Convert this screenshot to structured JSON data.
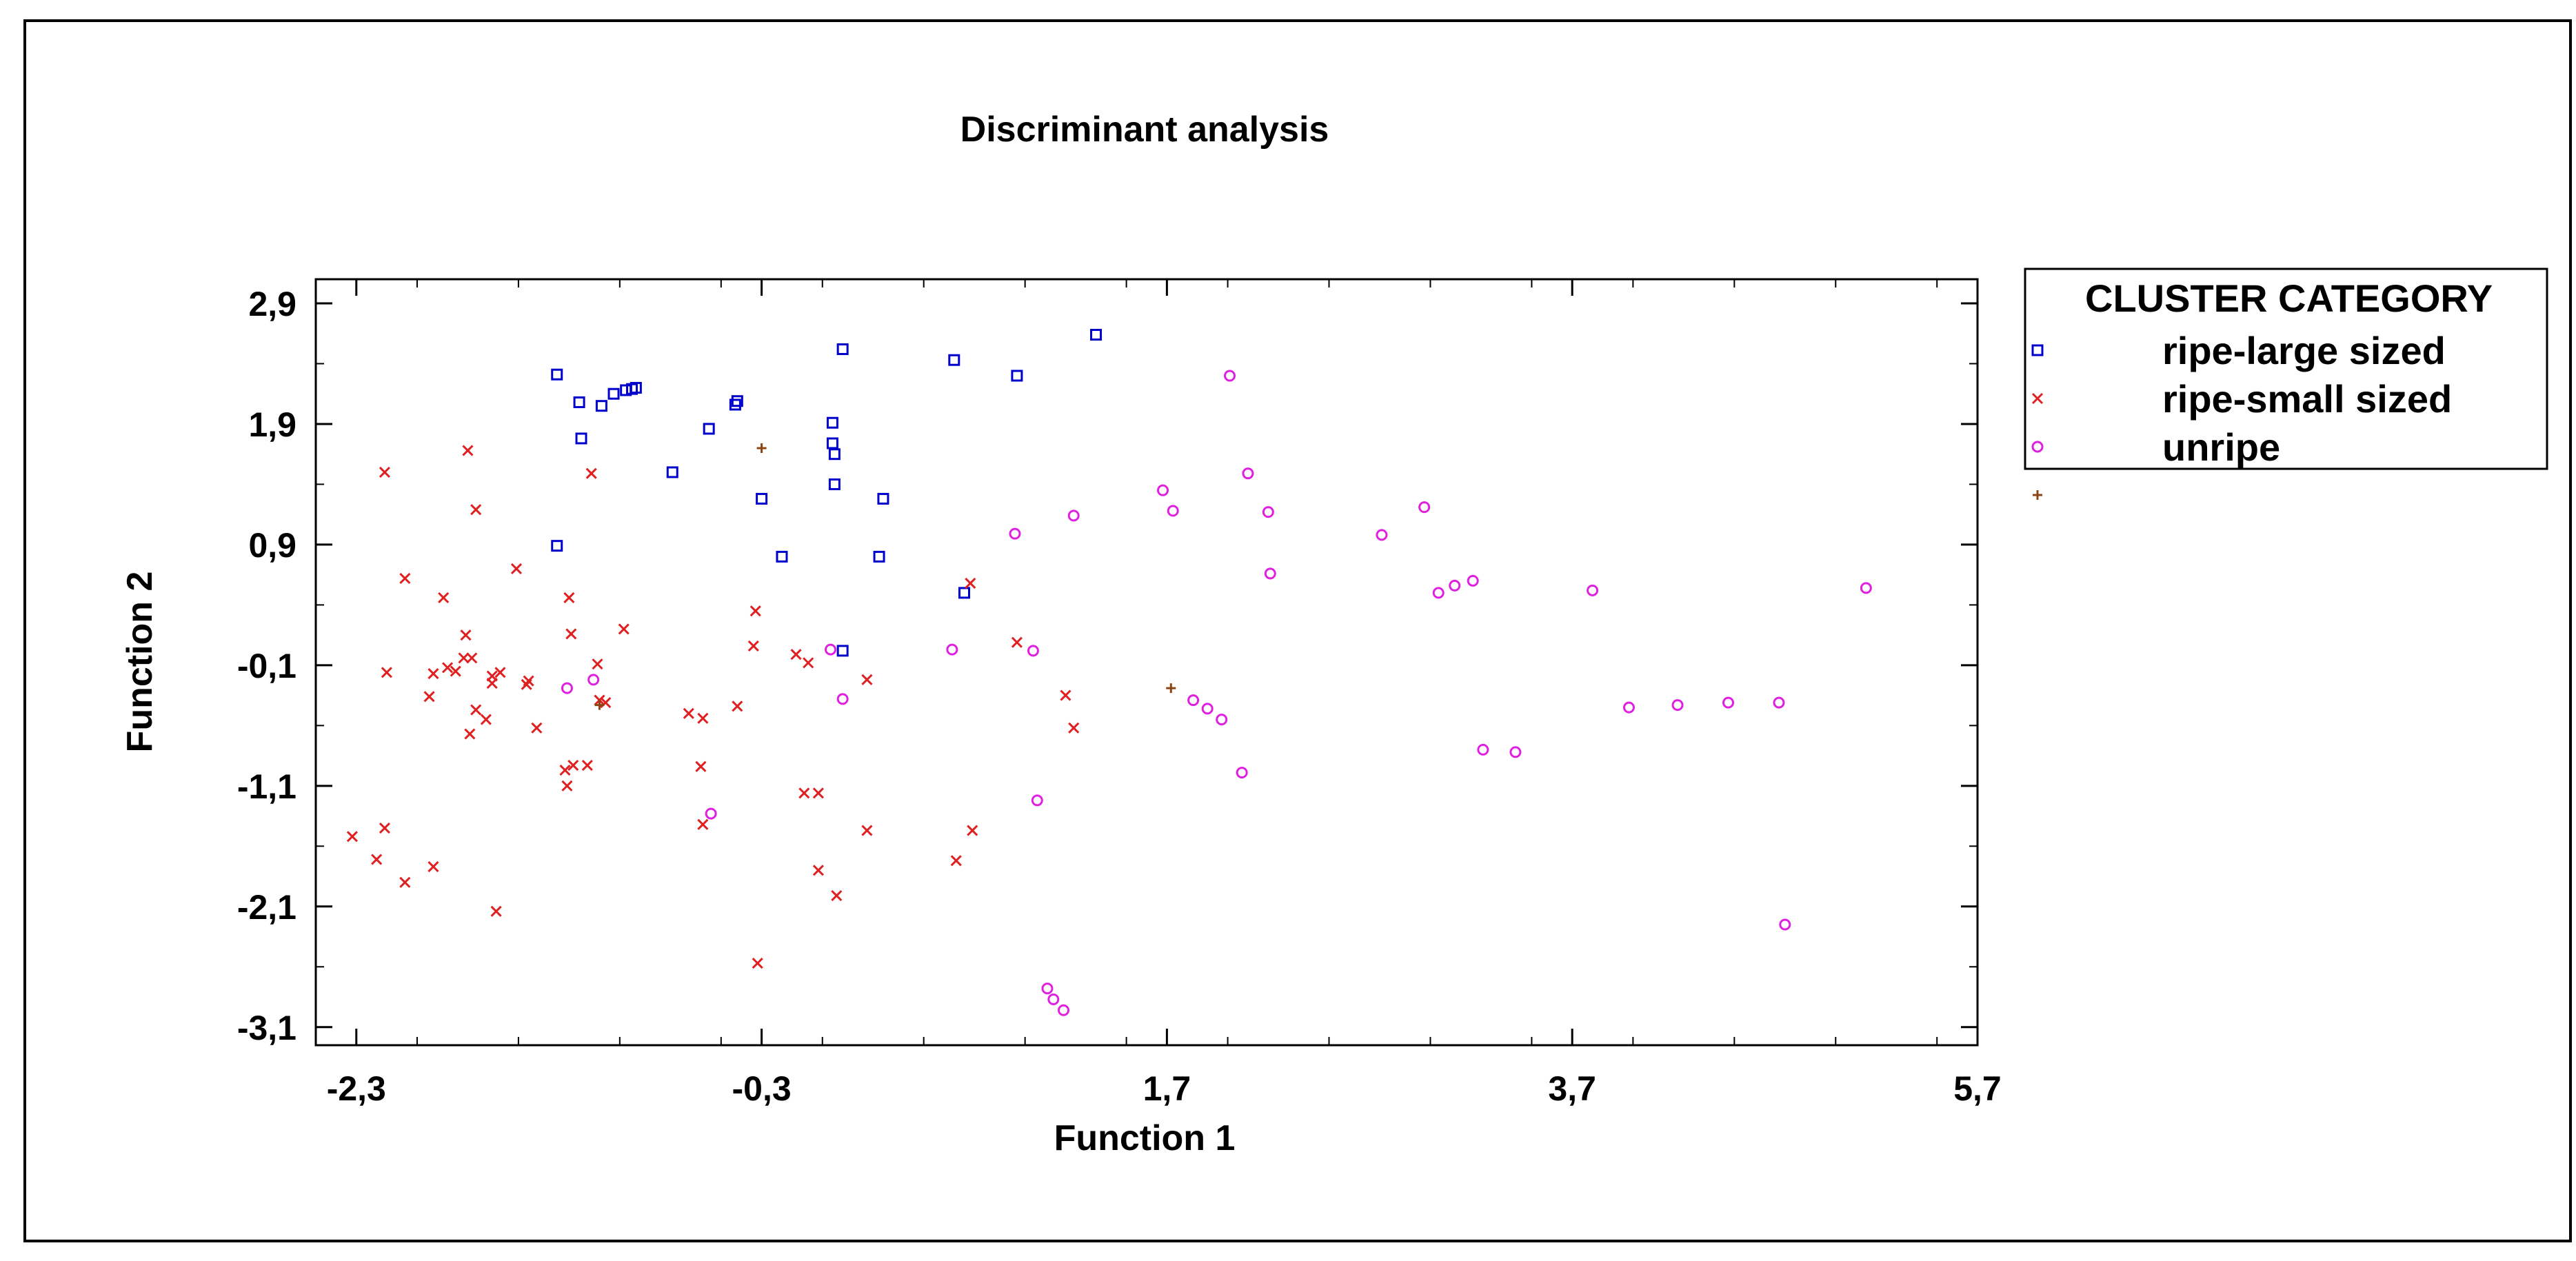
{
  "chart_data": {
    "type": "scatter",
    "title": "Discriminant analysis",
    "xlabel": "Function 1",
    "ylabel": "Function 2",
    "xlim": [
      -2.5,
      5.7
    ],
    "ylim": [
      -3.25,
      3.1
    ],
    "x_ticks": [
      "-2,3",
      "-0,3",
      "1,7",
      "3,7",
      "5,7"
    ],
    "x_tick_values": [
      -2.3,
      -0.3,
      1.7,
      3.7,
      5.7
    ],
    "y_ticks": [
      "2,9",
      "1,9",
      "0,9",
      "-0,1",
      "-1,1",
      "-2,1",
      "-3,1"
    ],
    "y_tick_values": [
      2.9,
      1.9,
      0.9,
      -0.1,
      -1.1,
      -2.1,
      -3.1
    ],
    "grid": false,
    "legend": {
      "title": "CLUSTER CATEGORY",
      "placement": "right",
      "entries": [
        {
          "label": "ripe-large sized",
          "color": "#0000cc",
          "marker": "square"
        },
        {
          "label": "ripe-small sized",
          "color": "#e02020",
          "marker": "x"
        },
        {
          "label": "unripe",
          "color": "#e020e0",
          "marker": "circle"
        },
        {
          "label": "",
          "color": "#8b4513",
          "marker": "plus"
        }
      ]
    },
    "series": [
      {
        "marker": "square",
        "color": "#0000cc",
        "points": [
          [
            -1.31,
            2.31
          ],
          [
            -1.2,
            2.08
          ],
          [
            -1.19,
            1.78
          ],
          [
            -1.09,
            2.05
          ],
          [
            -1.03,
            2.15
          ],
          [
            -0.97,
            2.18
          ],
          [
            -0.94,
            2.19
          ],
          [
            -0.92,
            2.2
          ],
          [
            -0.74,
            1.5
          ],
          [
            -0.56,
            1.86
          ],
          [
            -0.43,
            2.06
          ],
          [
            -0.42,
            2.09
          ],
          [
            -0.3,
            1.28
          ],
          [
            -0.2,
            0.8
          ],
          [
            0.05,
            1.91
          ],
          [
            0.05,
            1.74
          ],
          [
            0.06,
            1.65
          ],
          [
            0.06,
            1.4
          ],
          [
            0.1,
            2.52
          ],
          [
            0.1,
            0.02
          ],
          [
            0.28,
            0.8
          ],
          [
            0.3,
            1.28
          ],
          [
            0.65,
            2.43
          ],
          [
            0.7,
            0.5
          ],
          [
            0.96,
            2.3
          ],
          [
            1.35,
            2.64
          ],
          [
            -1.31,
            0.89
          ]
        ]
      },
      {
        "marker": "x",
        "color": "#e02020",
        "points": [
          [
            -2.32,
            -1.52
          ],
          [
            -2.2,
            -1.71
          ],
          [
            -2.16,
            1.5
          ],
          [
            -2.16,
            -1.45
          ],
          [
            -2.15,
            -0.16
          ],
          [
            -2.06,
            -1.9
          ],
          [
            -2.06,
            0.62
          ],
          [
            -1.92,
            -1.77
          ],
          [
            -1.94,
            -0.36
          ],
          [
            -1.92,
            -0.17
          ],
          [
            -1.87,
            0.46
          ],
          [
            -1.85,
            -0.12
          ],
          [
            -1.81,
            -0.15
          ],
          [
            -1.77,
            -0.04
          ],
          [
            -1.76,
            0.15
          ],
          [
            -1.75,
            1.68
          ],
          [
            -1.74,
            -0.67
          ],
          [
            -1.73,
            -0.04
          ],
          [
            -1.71,
            1.19
          ],
          [
            -1.71,
            -0.47
          ],
          [
            -1.66,
            -0.55
          ],
          [
            -1.63,
            -0.19
          ],
          [
            -1.63,
            -0.25
          ],
          [
            -1.61,
            -2.14
          ],
          [
            -1.59,
            -0.16
          ],
          [
            -1.51,
            0.7
          ],
          [
            -1.46,
            -0.26
          ],
          [
            -1.45,
            -0.23
          ],
          [
            -1.41,
            -0.62
          ],
          [
            -1.27,
            -0.97
          ],
          [
            -1.26,
            -1.1
          ],
          [
            -1.25,
            0.46
          ],
          [
            -1.24,
            0.16
          ],
          [
            -1.23,
            -0.93
          ],
          [
            -1.16,
            -0.93
          ],
          [
            -1.14,
            1.49
          ],
          [
            -1.11,
            -0.09
          ],
          [
            -1.1,
            -0.39
          ],
          [
            -1.07,
            -0.41
          ],
          [
            -0.98,
            0.2
          ],
          [
            -0.66,
            -0.5
          ],
          [
            -0.6,
            -0.94
          ],
          [
            -0.59,
            -1.42
          ],
          [
            -0.59,
            -0.54
          ],
          [
            -0.42,
            -0.44
          ],
          [
            -0.33,
            0.35
          ],
          [
            -0.34,
            0.06
          ],
          [
            -0.32,
            -2.57
          ],
          [
            -0.13,
            -0.01
          ],
          [
            -0.09,
            -1.16
          ],
          [
            -0.07,
            -0.08
          ],
          [
            -0.02,
            -1.16
          ],
          [
            -0.02,
            -1.8
          ],
          [
            0.07,
            -2.01
          ],
          [
            0.22,
            -0.22
          ],
          [
            0.22,
            -1.47
          ],
          [
            0.66,
            -1.72
          ],
          [
            0.74,
            -1.47
          ],
          [
            0.73,
            0.58
          ],
          [
            0.96,
            0.09
          ],
          [
            1.2,
            -0.35
          ],
          [
            1.24,
            -0.62
          ]
        ]
      },
      {
        "marker": "circle",
        "color": "#e020e0",
        "points": [
          [
            -1.26,
            -0.29
          ],
          [
            -1.13,
            -0.22
          ],
          [
            -0.55,
            -1.33
          ],
          [
            0.04,
            0.03
          ],
          [
            0.1,
            -0.38
          ],
          [
            0.64,
            0.03
          ],
          [
            0.95,
            0.99
          ],
          [
            1.04,
            0.02
          ],
          [
            1.06,
            -1.22
          ],
          [
            1.11,
            -2.78
          ],
          [
            1.14,
            -2.87
          ],
          [
            1.19,
            -2.96
          ],
          [
            1.24,
            1.14
          ],
          [
            1.68,
            1.35
          ],
          [
            1.73,
            1.18
          ],
          [
            1.83,
            -0.39
          ],
          [
            1.9,
            -0.46
          ],
          [
            1.97,
            -0.55
          ],
          [
            2.01,
            2.3
          ],
          [
            2.07,
            -0.99
          ],
          [
            2.1,
            1.49
          ],
          [
            2.2,
            1.17
          ],
          [
            2.21,
            0.66
          ],
          [
            2.76,
            0.98
          ],
          [
            2.97,
            1.21
          ],
          [
            3.04,
            0.5
          ],
          [
            3.12,
            0.56
          ],
          [
            3.21,
            0.6
          ],
          [
            3.26,
            -0.8
          ],
          [
            3.42,
            -0.82
          ],
          [
            3.8,
            0.52
          ],
          [
            3.98,
            -0.45
          ],
          [
            4.22,
            -0.43
          ],
          [
            4.47,
            -0.41
          ],
          [
            4.72,
            -0.41
          ],
          [
            4.75,
            -2.25
          ],
          [
            5.15,
            0.54
          ]
        ]
      },
      {
        "marker": "plus",
        "color": "#8b4513",
        "points": [
          [
            -0.3,
            1.7
          ],
          [
            -1.1,
            -0.43
          ],
          [
            1.72,
            -0.29
          ]
        ]
      }
    ]
  }
}
